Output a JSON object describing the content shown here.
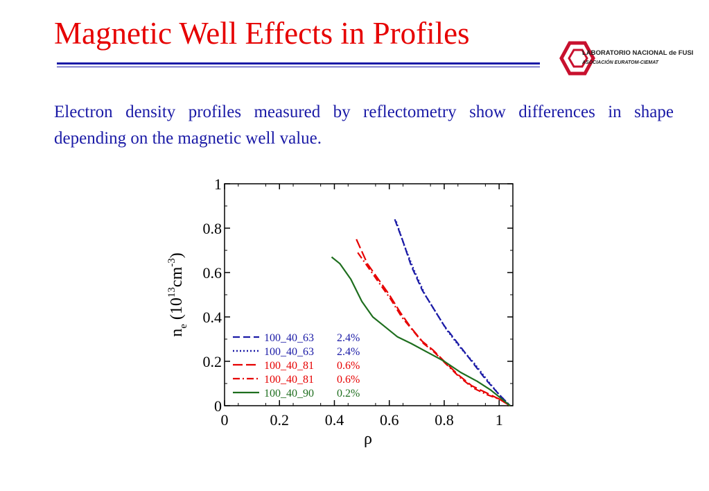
{
  "slide": {
    "title": "Magnetic Well Effects in Profiles",
    "body": "Electron density profiles measured by reflectometry show differences in shape depending on the magnetic well value."
  },
  "logo": {
    "line1": "LABORATORIO NACIONAL de FUSIÓN",
    "line2": "ASOCIACIÓN EURATOM-CIEMAT",
    "color": "#c8102e"
  },
  "chart_data": {
    "type": "line",
    "title": "",
    "xlabel": "ρ",
    "ylabel": {
      "base": "n",
      "sub": "e",
      "open": " (10",
      "sup1": "13",
      "mid": "cm",
      "sup2": "-3",
      "close": ")"
    },
    "xlim": [
      0,
      1.05
    ],
    "ylim": [
      0,
      1
    ],
    "xticks": [
      0,
      0.2,
      0.4,
      0.6,
      0.8,
      1
    ],
    "xtick_labels": [
      "0",
      "0.2",
      "0.4",
      "0.6",
      "0.8",
      "1"
    ],
    "yticks": [
      0,
      0.2,
      0.4,
      0.6,
      0.8,
      1
    ],
    "ytick_labels": [
      "0",
      "0.2",
      "0.4",
      "0.6",
      "0.8",
      "1"
    ],
    "legend_position": "lower-left",
    "series": [
      {
        "name": "100_40_63",
        "well": "2.4%",
        "color": "#1a1aa6",
        "dash": "dashed",
        "x": [
          0.62,
          0.65,
          0.68,
          0.72,
          0.76,
          0.8,
          0.85,
          0.9,
          0.95,
          1.0,
          1.04
        ],
        "y": [
          0.84,
          0.74,
          0.63,
          0.52,
          0.44,
          0.36,
          0.28,
          0.2,
          0.12,
          0.05,
          0.0
        ]
      },
      {
        "name": "100_40_63",
        "well": "2.4%",
        "color": "#1a1aa6",
        "dash": "dotted",
        "x": [
          0.625,
          0.655,
          0.69,
          0.73,
          0.77,
          0.81,
          0.86,
          0.91,
          0.96,
          1.0,
          1.04
        ],
        "y": [
          0.83,
          0.72,
          0.61,
          0.5,
          0.42,
          0.34,
          0.26,
          0.19,
          0.11,
          0.05,
          0.0
        ]
      },
      {
        "name": "100_40_81",
        "well": "0.6%",
        "color": "#e60000",
        "dash": "longdash",
        "x": [
          0.48,
          0.52,
          0.56,
          0.6,
          0.64,
          0.68,
          0.72,
          0.76,
          0.8,
          0.85,
          0.9,
          0.95,
          1.0,
          1.04
        ],
        "y": [
          0.75,
          0.64,
          0.57,
          0.5,
          0.42,
          0.35,
          0.29,
          0.25,
          0.2,
          0.14,
          0.09,
          0.06,
          0.03,
          0.0
        ]
      },
      {
        "name": "100_40_81",
        "well": "0.6%",
        "color": "#e60000",
        "dash": "dashdot",
        "x": [
          0.485,
          0.525,
          0.565,
          0.605,
          0.645,
          0.685,
          0.725,
          0.765,
          0.805,
          0.855,
          0.905,
          0.955,
          1.0,
          1.04
        ],
        "y": [
          0.69,
          0.62,
          0.55,
          0.48,
          0.4,
          0.34,
          0.28,
          0.24,
          0.19,
          0.13,
          0.08,
          0.05,
          0.03,
          0.0
        ]
      },
      {
        "name": "100_40_90",
        "well": "0.2%",
        "color": "#1e6e1e",
        "dash": "solid",
        "x": [
          0.39,
          0.42,
          0.46,
          0.5,
          0.54,
          0.58,
          0.63,
          0.68,
          0.74,
          0.8,
          0.86,
          0.92,
          0.97,
          1.0,
          1.04
        ],
        "y": [
          0.67,
          0.64,
          0.57,
          0.47,
          0.4,
          0.36,
          0.31,
          0.28,
          0.24,
          0.2,
          0.15,
          0.11,
          0.07,
          0.04,
          0.0
        ]
      }
    ]
  }
}
